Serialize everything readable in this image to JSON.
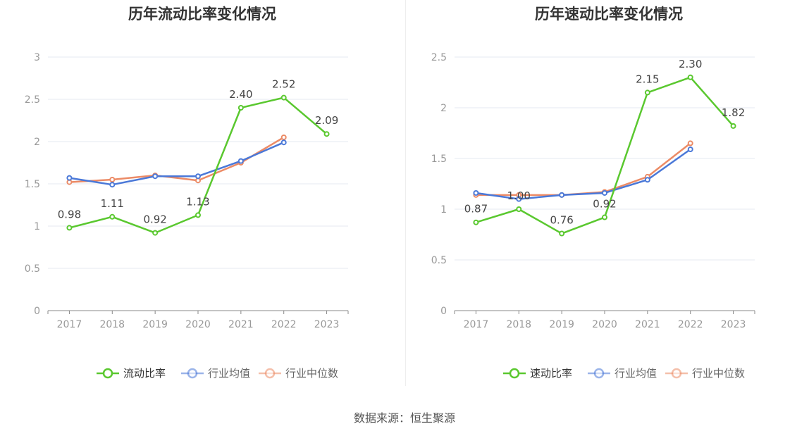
{
  "source": "数据来源：恒生聚源",
  "colors": {
    "main": "#5ac82f",
    "avg": "#4a78d8",
    "median": "#ec8b66",
    "grid": "#e6e9f2",
    "axis": "#888888",
    "tick_text": "#999999",
    "label_text": "#444444"
  },
  "chart_data": [
    {
      "type": "line",
      "title": "历年流动比率变化情况",
      "categories": [
        "2017",
        "2018",
        "2019",
        "2020",
        "2021",
        "2022",
        "2023"
      ],
      "ylim": [
        0,
        3
      ],
      "yticks": [
        0,
        0.5,
        1,
        1.5,
        2,
        2.5,
        3
      ],
      "ytick_labels": [
        "0",
        "0.5",
        "1",
        "1.5",
        "2",
        "2.5",
        "3"
      ],
      "grid": true,
      "legend": "bottom-center",
      "series": [
        {
          "name": "流动比率",
          "values": [
            0.98,
            1.11,
            0.92,
            1.13,
            2.4,
            2.52,
            2.09
          ],
          "labels": [
            "0.98",
            "1.11",
            "0.92",
            "1.13",
            "2.40",
            "2.52",
            "2.09"
          ]
        },
        {
          "name": "行业均值",
          "values": [
            1.57,
            1.49,
            1.59,
            1.59,
            1.77,
            1.99,
            null
          ]
        },
        {
          "name": "行业中位数",
          "values": [
            1.52,
            1.55,
            1.6,
            1.54,
            1.75,
            2.05,
            null
          ]
        }
      ]
    },
    {
      "type": "line",
      "title": "历年速动比率变化情况",
      "categories": [
        "2017",
        "2018",
        "2019",
        "2020",
        "2021",
        "2022",
        "2023"
      ],
      "ylim": [
        0,
        2.5
      ],
      "yticks": [
        0,
        0.5,
        1,
        1.5,
        2,
        2.5
      ],
      "ytick_labels": [
        "0",
        "0.5",
        "1",
        "1.5",
        "2",
        "2.5"
      ],
      "grid": true,
      "legend": "bottom-center",
      "series": [
        {
          "name": "速动比率",
          "values": [
            0.87,
            1.0,
            0.76,
            0.92,
            2.15,
            2.3,
            1.82
          ],
          "labels": [
            "0.87",
            "1.00",
            "0.76",
            "0.92",
            "2.15",
            "2.30",
            "1.82"
          ]
        },
        {
          "name": "行业均值",
          "values": [
            1.16,
            1.1,
            1.14,
            1.16,
            1.29,
            1.59,
            null
          ]
        },
        {
          "name": "行业中位数",
          "values": [
            1.14,
            1.14,
            1.14,
            1.17,
            1.32,
            1.65,
            null
          ]
        }
      ]
    }
  ]
}
